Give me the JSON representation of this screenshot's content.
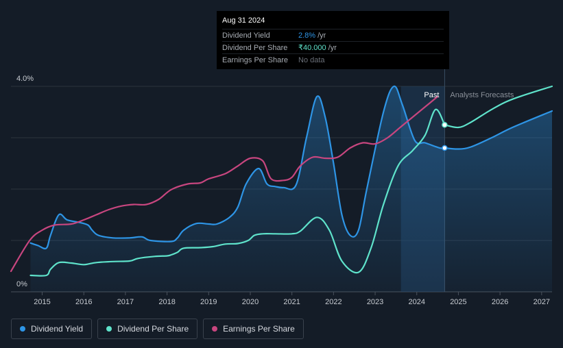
{
  "tooltip": {
    "date": "Aug 31 2024",
    "rows": [
      {
        "label": "Dividend Yield",
        "value": "2.8%",
        "unit": "/yr"
      },
      {
        "label": "Dividend Per Share",
        "value": "₹40.000",
        "unit": "/yr"
      },
      {
        "label": "Earnings Per Share",
        "value": "No data"
      }
    ]
  },
  "legend": [
    {
      "label": "Dividend Yield",
      "color": "#2e95e6"
    },
    {
      "label": "Dividend Per Share",
      "color": "#5fe3cb"
    },
    {
      "label": "Earnings Per Share",
      "color": "#c8467f"
    }
  ],
  "chart_data": {
    "type": "line",
    "title": "",
    "xlabel": "",
    "ylabel": "",
    "xlim": [
      2014.25,
      2027.25
    ],
    "ylim": [
      0,
      4.0
    ],
    "y_tick_labels": [
      "4.0%",
      "0%"
    ],
    "x_ticks": [
      2015,
      2016,
      2017,
      2018,
      2019,
      2020,
      2021,
      2022,
      2023,
      2024,
      2025,
      2026,
      2027
    ],
    "x_tick_labels": [
      "2015",
      "2016",
      "2017",
      "2018",
      "2019",
      "2020",
      "2021",
      "2022",
      "2023",
      "2024",
      "2025",
      "2026",
      "2027"
    ],
    "annotations": {
      "past": "Past",
      "forecast": "Analysts Forecasts"
    },
    "past_end_x": 2024.67,
    "highlight_start_x": 2023.62,
    "series": [
      {
        "name": "Dividend Yield",
        "color": "#2e95e6",
        "fill": true,
        "points": [
          [
            2014.72,
            0.95
          ],
          [
            2014.9,
            0.9
          ],
          [
            2015.1,
            0.85
          ],
          [
            2015.2,
            1.1
          ],
          [
            2015.4,
            1.5
          ],
          [
            2015.6,
            1.4
          ],
          [
            2015.9,
            1.35
          ],
          [
            2016.1,
            1.3
          ],
          [
            2016.2,
            1.2
          ],
          [
            2016.35,
            1.1
          ],
          [
            2016.7,
            1.05
          ],
          [
            2017.1,
            1.05
          ],
          [
            2017.4,
            1.07
          ],
          [
            2017.6,
            1.0
          ],
          [
            2018.1,
            0.98
          ],
          [
            2018.25,
            1.05
          ],
          [
            2018.4,
            1.2
          ],
          [
            2018.7,
            1.33
          ],
          [
            2019.0,
            1.32
          ],
          [
            2019.2,
            1.32
          ],
          [
            2019.5,
            1.45
          ],
          [
            2019.7,
            1.65
          ],
          [
            2019.9,
            2.1
          ],
          [
            2020.2,
            2.4
          ],
          [
            2020.4,
            2.1
          ],
          [
            2020.6,
            2.05
          ],
          [
            2020.8,
            2.03
          ],
          [
            2021.1,
            2.08
          ],
          [
            2021.35,
            3.0
          ],
          [
            2021.6,
            3.8
          ],
          [
            2021.8,
            3.4
          ],
          [
            2022.0,
            2.5
          ],
          [
            2022.2,
            1.5
          ],
          [
            2022.4,
            1.1
          ],
          [
            2022.6,
            1.2
          ],
          [
            2022.8,
            2.0
          ],
          [
            2023.2,
            3.5
          ],
          [
            2023.45,
            4.0
          ],
          [
            2023.65,
            3.65
          ],
          [
            2023.95,
            2.95
          ],
          [
            2024.2,
            2.9
          ],
          [
            2024.55,
            2.8
          ],
          [
            2024.67,
            2.8
          ]
        ]
      },
      {
        "name": "Dividend Per Share",
        "color": "#5fe3cb",
        "fill": false,
        "points": [
          [
            2014.72,
            0.32
          ],
          [
            2015.1,
            0.32
          ],
          [
            2015.2,
            0.44
          ],
          [
            2015.4,
            0.57
          ],
          [
            2015.7,
            0.56
          ],
          [
            2016.0,
            0.53
          ],
          [
            2016.3,
            0.57
          ],
          [
            2016.7,
            0.59
          ],
          [
            2017.1,
            0.6
          ],
          [
            2017.3,
            0.65
          ],
          [
            2017.7,
            0.69
          ],
          [
            2018.0,
            0.7
          ],
          [
            2018.1,
            0.72
          ],
          [
            2018.25,
            0.77
          ],
          [
            2018.4,
            0.85
          ],
          [
            2018.8,
            0.86
          ],
          [
            2019.1,
            0.88
          ],
          [
            2019.4,
            0.93
          ],
          [
            2019.7,
            0.94
          ],
          [
            2019.95,
            1.0
          ],
          [
            2020.1,
            1.1
          ],
          [
            2020.3,
            1.13
          ],
          [
            2020.6,
            1.13
          ],
          [
            2021.0,
            1.13
          ],
          [
            2021.2,
            1.18
          ],
          [
            2021.6,
            1.45
          ],
          [
            2021.9,
            1.2
          ],
          [
            2022.2,
            0.6
          ],
          [
            2022.6,
            0.38
          ],
          [
            2022.9,
            0.85
          ],
          [
            2023.2,
            1.7
          ],
          [
            2023.55,
            2.45
          ],
          [
            2023.9,
            2.75
          ],
          [
            2024.2,
            3.05
          ],
          [
            2024.45,
            3.55
          ],
          [
            2024.67,
            3.25
          ]
        ]
      },
      {
        "name": "Dividend Per Share (forecast)",
        "color": "#5fe3cb",
        "fill": false,
        "dashed": false,
        "points": [
          [
            2024.67,
            3.25
          ],
          [
            2025.0,
            3.2
          ],
          [
            2025.3,
            3.3
          ],
          [
            2025.8,
            3.55
          ],
          [
            2026.3,
            3.75
          ],
          [
            2027.25,
            4.0
          ]
        ]
      },
      {
        "name": "Dividend Yield (forecast)",
        "color": "#2e95e6",
        "fill": true,
        "points": [
          [
            2024.67,
            2.8
          ],
          [
            2025.0,
            2.78
          ],
          [
            2025.3,
            2.82
          ],
          [
            2025.8,
            3.0
          ],
          [
            2026.3,
            3.2
          ],
          [
            2027.25,
            3.52
          ]
        ]
      },
      {
        "name": "Earnings Per Share",
        "color": "#c8467f",
        "fill": false,
        "points": [
          [
            2014.25,
            0.4
          ],
          [
            2014.7,
            1.0
          ],
          [
            2015.0,
            1.2
          ],
          [
            2015.3,
            1.3
          ],
          [
            2015.7,
            1.32
          ],
          [
            2016.0,
            1.4
          ],
          [
            2016.3,
            1.5
          ],
          [
            2016.6,
            1.6
          ],
          [
            2016.9,
            1.67
          ],
          [
            2017.2,
            1.7
          ],
          [
            2017.5,
            1.7
          ],
          [
            2017.8,
            1.8
          ],
          [
            2018.1,
            1.99
          ],
          [
            2018.5,
            2.1
          ],
          [
            2018.8,
            2.12
          ],
          [
            2019.0,
            2.2
          ],
          [
            2019.4,
            2.3
          ],
          [
            2019.7,
            2.45
          ],
          [
            2020.0,
            2.6
          ],
          [
            2020.3,
            2.55
          ],
          [
            2020.5,
            2.2
          ],
          [
            2020.8,
            2.17
          ],
          [
            2021.0,
            2.23
          ],
          [
            2021.2,
            2.45
          ],
          [
            2021.5,
            2.62
          ],
          [
            2021.8,
            2.6
          ],
          [
            2022.1,
            2.62
          ],
          [
            2022.4,
            2.8
          ],
          [
            2022.7,
            2.9
          ],
          [
            2023.0,
            2.88
          ],
          [
            2023.3,
            3.0
          ],
          [
            2023.6,
            3.2
          ],
          [
            2023.9,
            3.4
          ],
          [
            2024.2,
            3.6
          ],
          [
            2024.5,
            3.8
          ]
        ]
      }
    ],
    "markers": [
      {
        "series": "Dividend Per Share",
        "x": 2024.67,
        "y": 3.25
      },
      {
        "series": "Dividend Yield",
        "x": 2024.67,
        "y": 2.8
      }
    ]
  }
}
